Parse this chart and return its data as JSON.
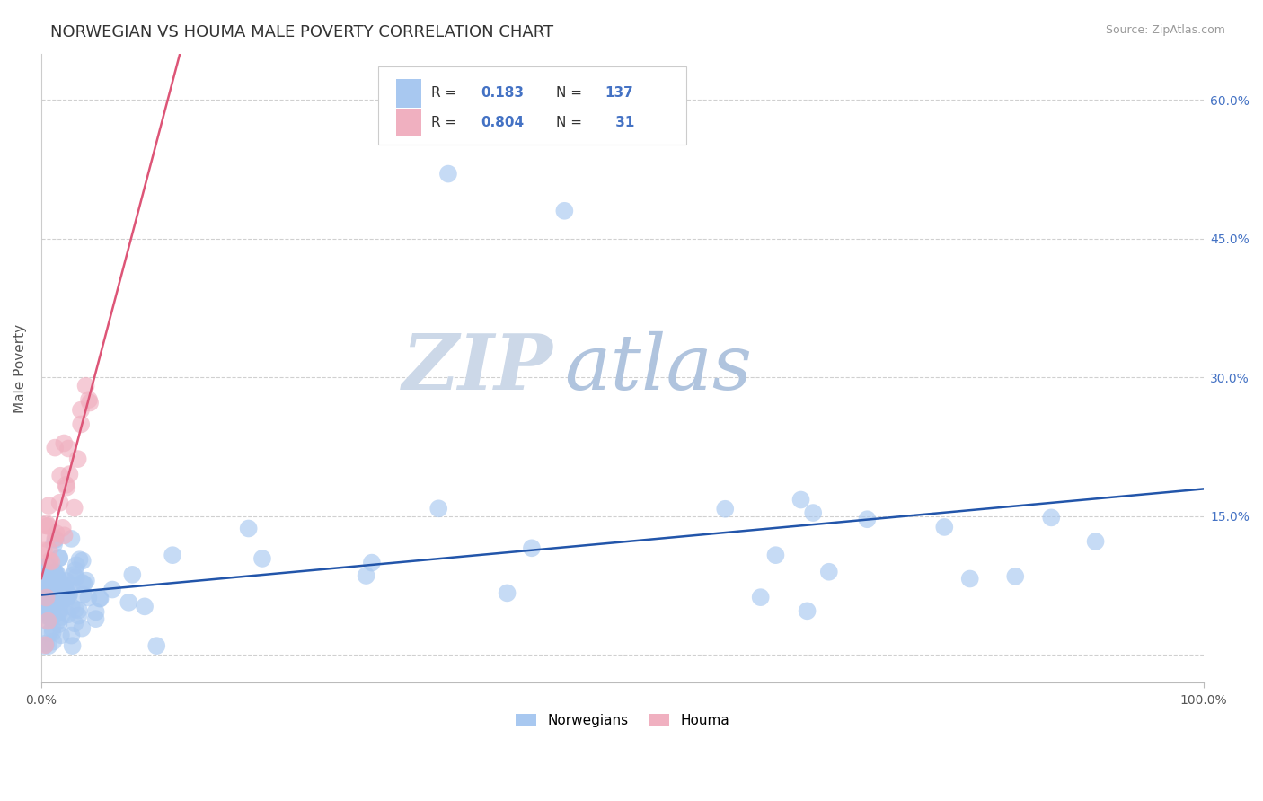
{
  "title": "NORWEGIAN VS HOUMA MALE POVERTY CORRELATION CHART",
  "source": "Source: ZipAtlas.com",
  "ylabel": "Male Poverty",
  "xlim": [
    0.0,
    1.0
  ],
  "ylim": [
    -0.03,
    0.65
  ],
  "norwegian_R": 0.183,
  "norwegian_N": 137,
  "houma_R": 0.804,
  "houma_N": 31,
  "norwegian_color": "#a8c8f0",
  "houma_color": "#f0b0c0",
  "trend_norwegian_color": "#2255aa",
  "trend_houma_color": "#dd5577",
  "background_color": "#ffffff",
  "watermark_zip_color": "#c8d8e8",
  "watermark_atlas_color": "#b8c8e0",
  "title_fontsize": 13,
  "axis_label_fontsize": 11,
  "tick_fontsize": 10,
  "right_tick_color": "#4472c4",
  "ytick_values": [
    0.0,
    0.15,
    0.3,
    0.45,
    0.6
  ],
  "ytick_labels_right": [
    "",
    "15.0%",
    "30.0%",
    "45.0%",
    "60.0%"
  ]
}
